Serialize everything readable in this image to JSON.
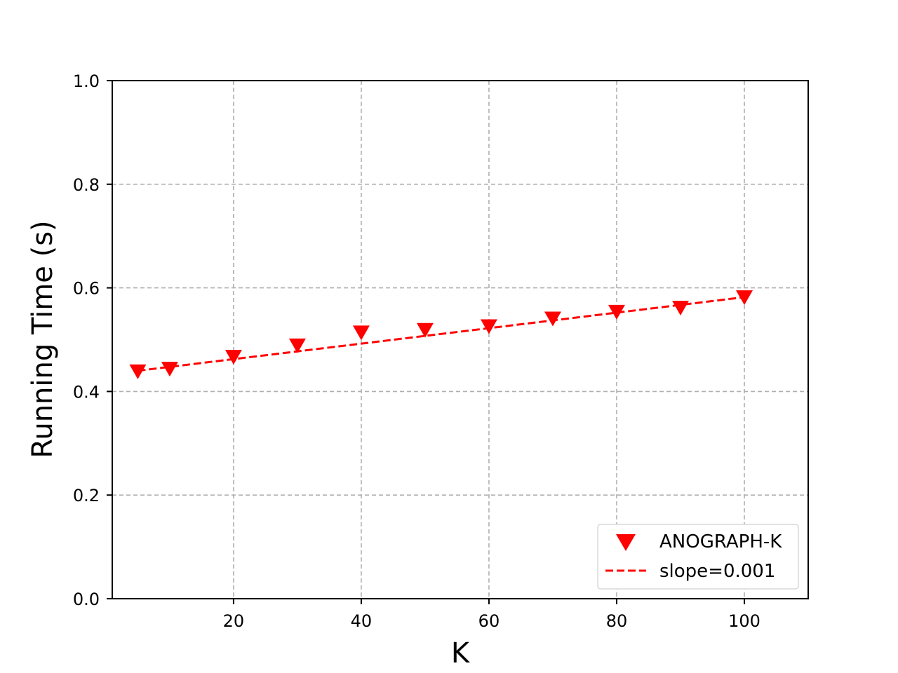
{
  "chart_data": {
    "type": "scatter",
    "title": "",
    "xlabel": "K",
    "ylabel": "Running Time (s)",
    "xlim": [
      1,
      110
    ],
    "ylim": [
      0.0,
      1.0
    ],
    "x_ticks": [
      20,
      40,
      60,
      80,
      100
    ],
    "x_tick_labels": [
      "20",
      "40",
      "60",
      "80",
      "100"
    ],
    "y_ticks": [
      0.0,
      0.2,
      0.4,
      0.6,
      0.8,
      1.0
    ],
    "y_tick_labels": [
      "0.0",
      "0.2",
      "0.4",
      "0.6",
      "0.8",
      "1.0"
    ],
    "grid": true,
    "legend_position": "bottom-right",
    "series": [
      {
        "name": "ANOGRAPH-K",
        "kind": "scatter",
        "marker": "triangle-down",
        "color": "#ff0000",
        "x": [
          5,
          10,
          20,
          30,
          40,
          50,
          60,
          70,
          80,
          90,
          100
        ],
        "y": [
          0.44,
          0.445,
          0.468,
          0.49,
          0.515,
          0.52,
          0.527,
          0.542,
          0.555,
          0.563,
          0.583
        ]
      },
      {
        "name": "slope=0.001",
        "kind": "line",
        "line_style": "dashed",
        "color": "#ff0000",
        "x": [
          5,
          100
        ],
        "y": [
          0.44,
          0.582
        ]
      }
    ]
  }
}
